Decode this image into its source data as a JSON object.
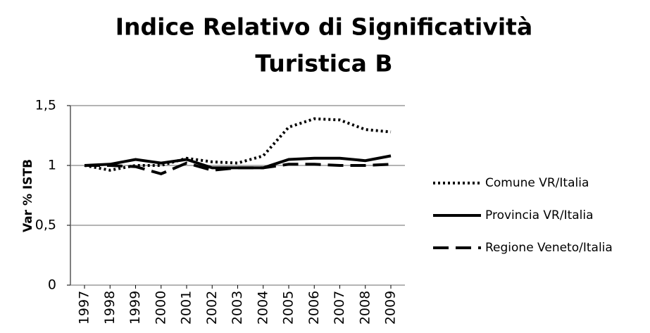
{
  "chart_data": {
    "type": "line",
    "title": [
      "Indice Relativo di Significatività",
      "Turistica B"
    ],
    "ylabel": "Var % ISTB",
    "categories": [
      "1997",
      "1998",
      "1999",
      "2000",
      "2001",
      "2002",
      "2003",
      "2004",
      "2005",
      "2006",
      "2007",
      "2008",
      "2009"
    ],
    "series": [
      {
        "name": "Comune VR/Italia",
        "color": "#000000",
        "linestyle": "dotted",
        "values": [
          1.0,
          0.96,
          1.0,
          1.0,
          1.06,
          1.03,
          1.02,
          1.08,
          1.32,
          1.39,
          1.38,
          1.3,
          1.28
        ]
      },
      {
        "name": "Provincia VR/Italia",
        "color": "#000000",
        "linestyle": "solid",
        "values": [
          1.0,
          1.01,
          1.05,
          1.02,
          1.05,
          0.98,
          0.98,
          0.98,
          1.05,
          1.06,
          1.06,
          1.04,
          1.08
        ]
      },
      {
        "name": "Regione Veneto/Italia",
        "color": "#000000",
        "linestyle": "dashed",
        "values": [
          1.0,
          1.0,
          0.99,
          0.93,
          1.02,
          0.96,
          0.98,
          0.98,
          1.01,
          1.01,
          1.0,
          1.0,
          1.01
        ]
      }
    ],
    "ylim": [
      0,
      1.5
    ],
    "yticks": [
      0,
      {
        "value": 0.5,
        "label": "0,5"
      },
      1,
      {
        "value": 1.5,
        "label": "1,5"
      }
    ],
    "grid": true,
    "legend": "right"
  }
}
